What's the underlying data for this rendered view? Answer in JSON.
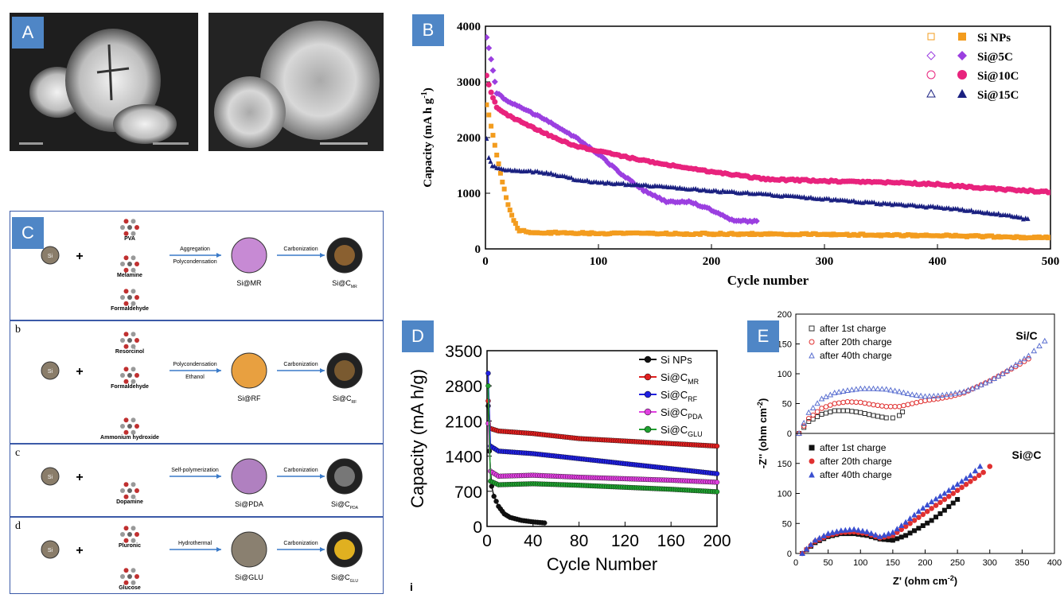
{
  "panels": {
    "A": {
      "label": "A"
    },
    "B": {
      "label": "B"
    },
    "C": {
      "label": "C"
    },
    "D": {
      "label": "D"
    },
    "E": {
      "label": "E"
    }
  },
  "schematic": {
    "row_a": {
      "letter": "",
      "reagents": [
        "PVA",
        "Melamine",
        "Formaldehyde"
      ],
      "step1": "Aggregation",
      "step1b": "Polycondensation",
      "mid": "Si@MR",
      "step2": "Carbonization",
      "end": "Si@C",
      "end_sub": "MR"
    },
    "row_b": {
      "letter": "b",
      "reagents": [
        "Resorcinol",
        "Formaldehyde",
        "Ammonium hydroxide"
      ],
      "step1": "Polycondensation",
      "step1b": "Ethanol",
      "mid": "Si@RF",
      "step2": "Carbonization",
      "end": "Si@C",
      "end_sub": "RF"
    },
    "row_c": {
      "letter": "c",
      "reagents": [
        "Dopamine"
      ],
      "step1": "Self-polymerization",
      "mid": "Si@PDA",
      "step2": "Carbonization",
      "end": "Si@C",
      "end_sub": "PDA"
    },
    "row_d": {
      "letter": "d",
      "reagents": [
        "Pluronic",
        "Glucose"
      ],
      "step1": "Hydrothermal",
      "mid": "Si@GLU",
      "step2": "Carbonization",
      "end": "Si@C",
      "end_sub": "GLU"
    },
    "si_label": "Si",
    "plus": "+"
  },
  "chart_data": [
    {
      "id": "B",
      "type": "scatter",
      "xlabel": "Cycle number",
      "ylabel": "Capacity (mA h g",
      "ylabel_sup": "-1",
      "ylabel_end": ")",
      "xlim": [
        0,
        500
      ],
      "ylim": [
        0,
        4000
      ],
      "xticks": [
        0,
        100,
        200,
        300,
        400,
        500
      ],
      "yticks": [
        0,
        1000,
        2000,
        3000,
        4000
      ],
      "legend_position": "top-right",
      "series": [
        {
          "name": "Si NPs",
          "color": "#f39c1e",
          "x": [
            1,
            5,
            10,
            15,
            20,
            25,
            30,
            40,
            60,
            100,
            200,
            300,
            400,
            500
          ],
          "values": [
            2600,
            2200,
            1700,
            1200,
            800,
            500,
            330,
            300,
            290,
            280,
            270,
            260,
            240,
            200
          ]
        },
        {
          "name": "Si@5C",
          "color": "#9b3fe0",
          "x": [
            1,
            5,
            10,
            20,
            40,
            60,
            80,
            100,
            120,
            140,
            160,
            180,
            200,
            220,
            240
          ],
          "values": [
            3800,
            3400,
            2800,
            2650,
            2450,
            2250,
            2000,
            1700,
            1350,
            1050,
            850,
            850,
            700,
            500,
            500
          ]
        },
        {
          "name": "Si@10C",
          "color": "#e8237d",
          "x": [
            1,
            5,
            10,
            20,
            40,
            60,
            80,
            100,
            150,
            200,
            250,
            300,
            350,
            400,
            450,
            500
          ],
          "values": [
            3100,
            2800,
            2550,
            2400,
            2200,
            2000,
            1850,
            1750,
            1550,
            1380,
            1250,
            1220,
            1200,
            1160,
            1080,
            1020
          ]
        },
        {
          "name": "Si@15C",
          "color": "#1a2080",
          "x": [
            1,
            3,
            6,
            10,
            20,
            40,
            60,
            80,
            100,
            150,
            200,
            250,
            300,
            350,
            400,
            450,
            480
          ],
          "values": [
            2000,
            1650,
            1500,
            1450,
            1420,
            1400,
            1350,
            1250,
            1200,
            1130,
            1050,
            980,
            900,
            820,
            750,
            640,
            540
          ]
        }
      ]
    },
    {
      "id": "D",
      "type": "line",
      "xlabel": "Cycle Number",
      "ylabel": "Capacity (mA h/g)",
      "xlim": [
        0,
        200
      ],
      "ylim": [
        0,
        3500
      ],
      "xticks": [
        0,
        40,
        80,
        120,
        160,
        200
      ],
      "yticks": [
        0,
        700,
        1400,
        2100,
        2800,
        3500
      ],
      "legend_position": "top-right",
      "series": [
        {
          "name": "Si NPs",
          "sub": "",
          "color": "#111111",
          "x": [
            1,
            2,
            4,
            6,
            10,
            15,
            20,
            30,
            40,
            50
          ],
          "values": [
            2400,
            1500,
            800,
            600,
            400,
            250,
            180,
            120,
            90,
            70
          ]
        },
        {
          "name": "Si@C",
          "sub": "MR",
          "color": "#e02020",
          "x": [
            1,
            3,
            10,
            40,
            80,
            120,
            160,
            200
          ],
          "values": [
            2500,
            1950,
            1900,
            1850,
            1750,
            1700,
            1650,
            1600
          ]
        },
        {
          "name": "Si@C",
          "sub": "RF",
          "color": "#2020e0",
          "x": [
            1,
            3,
            10,
            40,
            80,
            120,
            160,
            200
          ],
          "values": [
            3050,
            1600,
            1500,
            1450,
            1350,
            1250,
            1150,
            1050
          ]
        },
        {
          "name": "Si@C",
          "sub": "PDA",
          "color": "#e040e0",
          "x": [
            1,
            3,
            10,
            40,
            80,
            120,
            160,
            200
          ],
          "values": [
            2050,
            1100,
            1000,
            1020,
            980,
            950,
            920,
            880
          ]
        },
        {
          "name": "Si@C",
          "sub": "GLU",
          "color": "#20a030",
          "x": [
            1,
            3,
            10,
            40,
            80,
            120,
            160,
            200
          ],
          "values": [
            2800,
            900,
            830,
            850,
            820,
            780,
            740,
            690
          ]
        }
      ]
    },
    {
      "id": "E-top",
      "type": "scatter",
      "annotation": "Si/C",
      "xlim": [
        0,
        400
      ],
      "ylim": [
        0,
        200
      ],
      "yticks": [
        0,
        50,
        100,
        150,
        200
      ],
      "legend_position": "top-left",
      "series": [
        {
          "name": "after 1st charge",
          "color": "#333333",
          "x": [
            5,
            20,
            40,
            60,
            80,
            100,
            120,
            140,
            150,
            160,
            165
          ],
          "values": [
            0,
            20,
            32,
            38,
            38,
            35,
            30,
            26,
            26,
            30,
            36
          ]
        },
        {
          "name": "after 20th charge",
          "color": "#e03030",
          "x": [
            5,
            20,
            40,
            60,
            80,
            100,
            120,
            140,
            160,
            180,
            200,
            220,
            240,
            260,
            280,
            300,
            320,
            340,
            360
          ],
          "values": [
            0,
            25,
            42,
            50,
            53,
            52,
            48,
            45,
            45,
            50,
            55,
            58,
            62,
            68,
            78,
            88,
            100,
            112,
            125
          ]
        },
        {
          "name": "after 40th charge",
          "color": "#5a6fd0",
          "x": [
            5,
            20,
            40,
            60,
            80,
            100,
            120,
            140,
            160,
            180,
            200,
            220,
            240,
            260,
            280,
            300,
            320,
            340,
            360,
            385
          ],
          "values": [
            0,
            35,
            58,
            68,
            72,
            75,
            75,
            74,
            70,
            65,
            62,
            63,
            66,
            70,
            78,
            88,
            100,
            115,
            130,
            155
          ]
        }
      ]
    },
    {
      "id": "E-bottom",
      "type": "scatter",
      "annotation": "Si@C",
      "xlabel": "Z' (ohm cm",
      "xlabel_sup": "-2",
      "xlabel_end": ")",
      "ylabel": "-Z'' (ohm cm",
      "ylabel_sup": "-2",
      "ylabel_end": ")",
      "xlim": [
        0,
        400
      ],
      "ylim": [
        0,
        200
      ],
      "xticks": [
        0,
        50,
        100,
        150,
        200,
        250,
        300,
        350,
        400
      ],
      "yticks": [
        0,
        50,
        100,
        150
      ],
      "legend_position": "top-left",
      "series": [
        {
          "name": "after 1st charge",
          "color": "#111111",
          "x": [
            10,
            30,
            50,
            70,
            90,
            110,
            130,
            150,
            170,
            190,
            210,
            230,
            250
          ],
          "values": [
            0,
            18,
            28,
            33,
            33,
            30,
            24,
            22,
            30,
            42,
            55,
            72,
            90
          ]
        },
        {
          "name": "after 20th charge",
          "color": "#e03030",
          "x": [
            10,
            30,
            50,
            70,
            90,
            110,
            130,
            150,
            170,
            190,
            210,
            230,
            250,
            270,
            290,
            300
          ],
          "values": [
            0,
            20,
            30,
            35,
            36,
            33,
            26,
            30,
            45,
            60,
            75,
            90,
            105,
            120,
            135,
            145
          ]
        },
        {
          "name": "after 40th charge",
          "color": "#3a4fd0",
          "x": [
            10,
            30,
            50,
            70,
            90,
            110,
            130,
            150,
            170,
            190,
            210,
            230,
            250,
            270,
            285
          ],
          "values": [
            0,
            22,
            33,
            38,
            40,
            36,
            28,
            35,
            52,
            70,
            86,
            100,
            115,
            130,
            145
          ]
        }
      ]
    }
  ]
}
